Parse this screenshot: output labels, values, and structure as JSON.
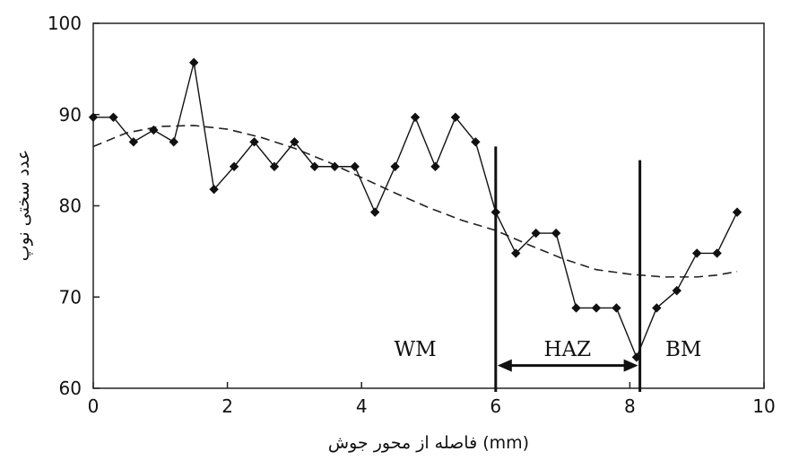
{
  "chart_data": {
    "type": "line",
    "xlabel": "فاصله از محور جوش (mm)",
    "ylabel": "عدد سختی نوپ",
    "xlim": [
      0,
      10
    ],
    "ylim": [
      60,
      100
    ],
    "xticks": [
      0,
      2,
      4,
      6,
      8,
      10
    ],
    "yticks": [
      60,
      70,
      80,
      90,
      100
    ],
    "grid": false,
    "series": [
      {
        "style": "solid-with-diamond-markers",
        "x": [
          0,
          0.3,
          0.6,
          0.9,
          1.2,
          1.5,
          1.8,
          2.1,
          2.4,
          2.7,
          3.0,
          3.3,
          3.6,
          3.9,
          4.2,
          4.5,
          4.8,
          5.1,
          5.4,
          5.7,
          6.0,
          6.3,
          6.6,
          6.9,
          7.2,
          7.5,
          7.8,
          8.1,
          8.4,
          8.7,
          9.0,
          9.3,
          9.6
        ],
        "y": [
          89.7,
          89.7,
          87.0,
          88.3,
          87.0,
          95.7,
          81.8,
          84.3,
          87.0,
          84.3,
          87.0,
          84.3,
          84.3,
          84.3,
          79.3,
          84.3,
          89.7,
          84.3,
          89.7,
          87.0,
          79.3,
          74.8,
          77.0,
          77.0,
          68.8,
          68.8,
          68.8,
          63.4,
          68.8,
          70.7,
          74.8,
          74.8,
          79.3
        ]
      },
      {
        "style": "dashed-trend",
        "x": [
          0,
          0.5,
          1.0,
          1.5,
          2.0,
          2.5,
          3.0,
          3.5,
          4.0,
          4.5,
          5.0,
          5.5,
          6.0,
          6.5,
          7.0,
          7.5,
          8.0,
          8.5,
          9.0,
          9.3,
          9.6
        ],
        "y": [
          86.5,
          88.0,
          88.7,
          88.8,
          88.4,
          87.5,
          86.3,
          84.8,
          83.1,
          81.4,
          79.8,
          78.4,
          77.3,
          75.7,
          74.2,
          73.0,
          72.5,
          72.2,
          72.2,
          72.4,
          72.8
        ]
      }
    ],
    "vertical_lines": [
      {
        "x": 6.0,
        "y_top": 86.5
      },
      {
        "x": 8.15,
        "y_top": 85.0
      }
    ],
    "arrow": {
      "x_start": 6.0,
      "x_end": 8.15,
      "y": 62.5
    },
    "region_labels": [
      {
        "text": "WM",
        "x": 4.8,
        "y": 64.3
      },
      {
        "text": "HAZ",
        "x": 7.07,
        "y": 64.3
      },
      {
        "text": "BM",
        "x": 8.8,
        "y": 64.3
      }
    ]
  }
}
